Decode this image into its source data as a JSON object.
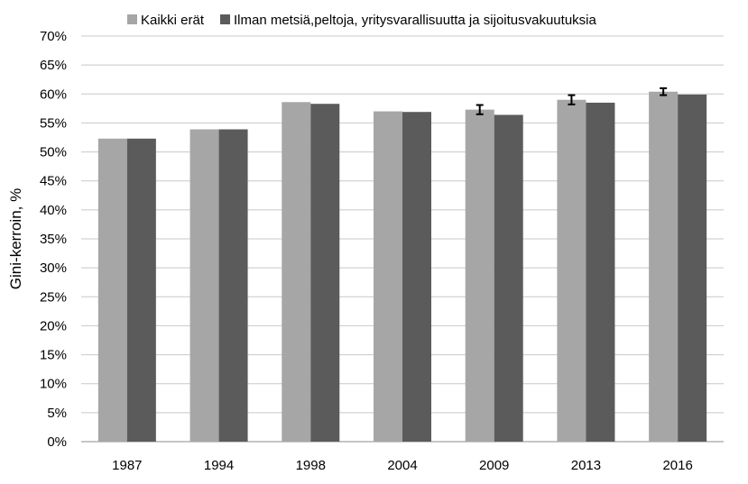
{
  "chart_data": {
    "type": "bar",
    "title": "",
    "xlabel": "",
    "ylabel": "Gini-kerroin, %",
    "categories": [
      "1987",
      "1994",
      "1998",
      "2004",
      "2009",
      "2013",
      "2016"
    ],
    "series": [
      {
        "name": "Kaikki erät",
        "color": "#a6a6a6",
        "values": [
          52.3,
          53.9,
          58.6,
          57.0,
          57.3,
          59.0,
          60.4
        ],
        "error_bars": [
          null,
          null,
          null,
          null,
          0.8,
          0.8,
          0.6
        ]
      },
      {
        "name": "Ilman metsiä,peltoja, yritysvarallisuutta ja sijoitusvakuutuksia",
        "color": "#5b5b5b",
        "values": [
          52.3,
          53.9,
          58.3,
          56.9,
          56.4,
          58.5,
          59.9
        ]
      }
    ],
    "ylim": [
      0,
      70
    ],
    "yticks": [
      0,
      5,
      10,
      15,
      20,
      25,
      30,
      35,
      40,
      45,
      50,
      55,
      60,
      65,
      70
    ],
    "ytick_labels": [
      "0%",
      "5%",
      "10%",
      "15%",
      "20%",
      "25%",
      "30%",
      "35%",
      "40%",
      "45%",
      "50%",
      "55%",
      "60%",
      "65%",
      "70%"
    ],
    "grid": true,
    "legend_position": "top"
  }
}
